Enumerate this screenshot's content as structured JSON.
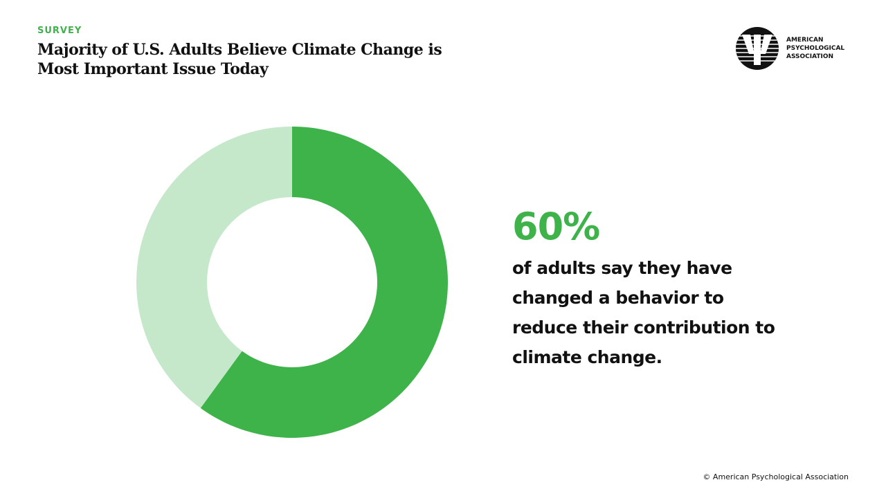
{
  "header": {
    "kicker": "SURVEY",
    "title": "Majority of U.S. Adults Believe Climate Change is Most Important Issue Today"
  },
  "logo": {
    "lines": [
      "AMERICAN",
      "PSYCHOLOGICAL",
      "ASSOCIATION"
    ]
  },
  "chart_data": {
    "type": "pie",
    "donut": true,
    "values": [
      60,
      40
    ],
    "colors": [
      "#3db34a",
      "#c5e8cb"
    ],
    "start": "top",
    "direction": "clockwise",
    "stat_label": "60%",
    "description": "of adults say they have changed a behavior to reduce their contribution to climate change."
  },
  "footer": {
    "copyright": "© American Psychological Association"
  }
}
